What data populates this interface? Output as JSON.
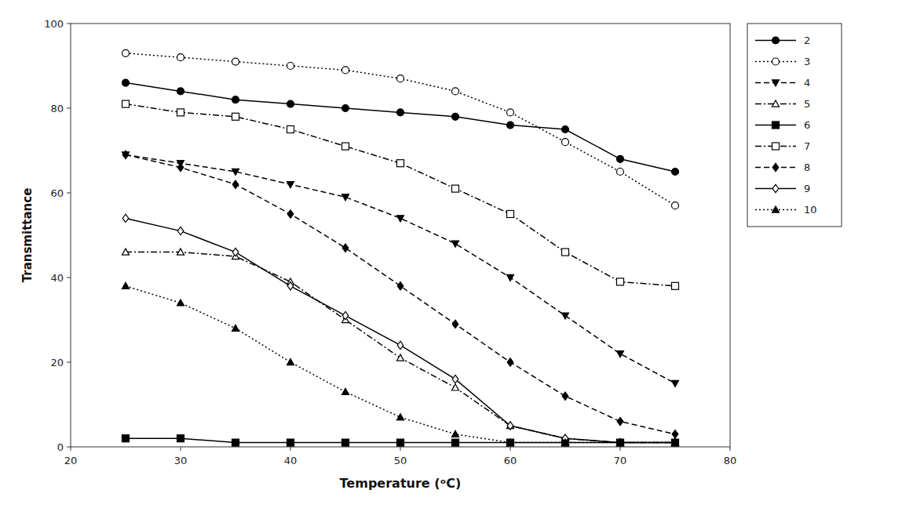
{
  "chart_data": {
    "type": "line",
    "x_label": "Temperature (ᵒC)",
    "y_label": "Transmittance",
    "x": [
      25,
      30,
      35,
      40,
      45,
      50,
      55,
      60,
      65,
      70,
      75
    ],
    "series": [
      {
        "name": "2",
        "color": "black",
        "marker": "filled-circle",
        "line_style": "solid",
        "values": [
          86,
          84,
          82,
          81,
          80,
          79,
          78,
          76,
          75,
          68,
          65
        ]
      },
      {
        "name": "3",
        "color": "black",
        "marker": "open-circle",
        "line_style": "dotted",
        "values": [
          93,
          92,
          91,
          90,
          89,
          87,
          84,
          79,
          72,
          65,
          57
        ]
      },
      {
        "name": "4",
        "color": "black",
        "marker": "filled-triangle-down",
        "line_style": "dashed",
        "values": [
          69,
          67,
          65,
          62,
          59,
          54,
          48,
          40,
          31,
          22,
          15
        ]
      },
      {
        "name": "5",
        "color": "black",
        "marker": "open-triangle-up",
        "line_style": "dashdot",
        "values": [
          46,
          46,
          45,
          39,
          30,
          21,
          14,
          5,
          2,
          1,
          1
        ]
      },
      {
        "name": "6",
        "color": "black",
        "marker": "filled-square",
        "line_style": "solid",
        "values": [
          2,
          2,
          1,
          1,
          1,
          1,
          1,
          1,
          1,
          1,
          1
        ]
      },
      {
        "name": "7",
        "color": "black",
        "marker": "open-square",
        "line_style": "dashdot",
        "values": [
          81,
          79,
          78,
          75,
          71,
          67,
          61,
          55,
          46,
          39,
          38
        ]
      },
      {
        "name": "8",
        "color": "black",
        "marker": "filled-diamond",
        "line_style": "dashed",
        "values": [
          69,
          66,
          62,
          55,
          47,
          38,
          29,
          20,
          12,
          6,
          3
        ]
      },
      {
        "name": "9",
        "color": "black",
        "marker": "open-diamond",
        "line_style": "solid",
        "values": [
          54,
          51,
          46,
          38,
          31,
          24,
          16,
          5,
          2,
          1,
          1
        ]
      },
      {
        "name": "10",
        "color": "black",
        "marker": "filled-triangle-up",
        "line_style": "dotted",
        "values": [
          38,
          34,
          28,
          20,
          13,
          7,
          3,
          1,
          1,
          1,
          1
        ]
      }
    ],
    "xlim": [
      20,
      80
    ],
    "ylim": [
      0,
      100
    ],
    "xticks": [
      20,
      30,
      40,
      50,
      60,
      70,
      80
    ],
    "yticks": [
      0,
      20,
      40,
      60,
      80,
      100
    ],
    "grid": false,
    "legend": "right"
  }
}
